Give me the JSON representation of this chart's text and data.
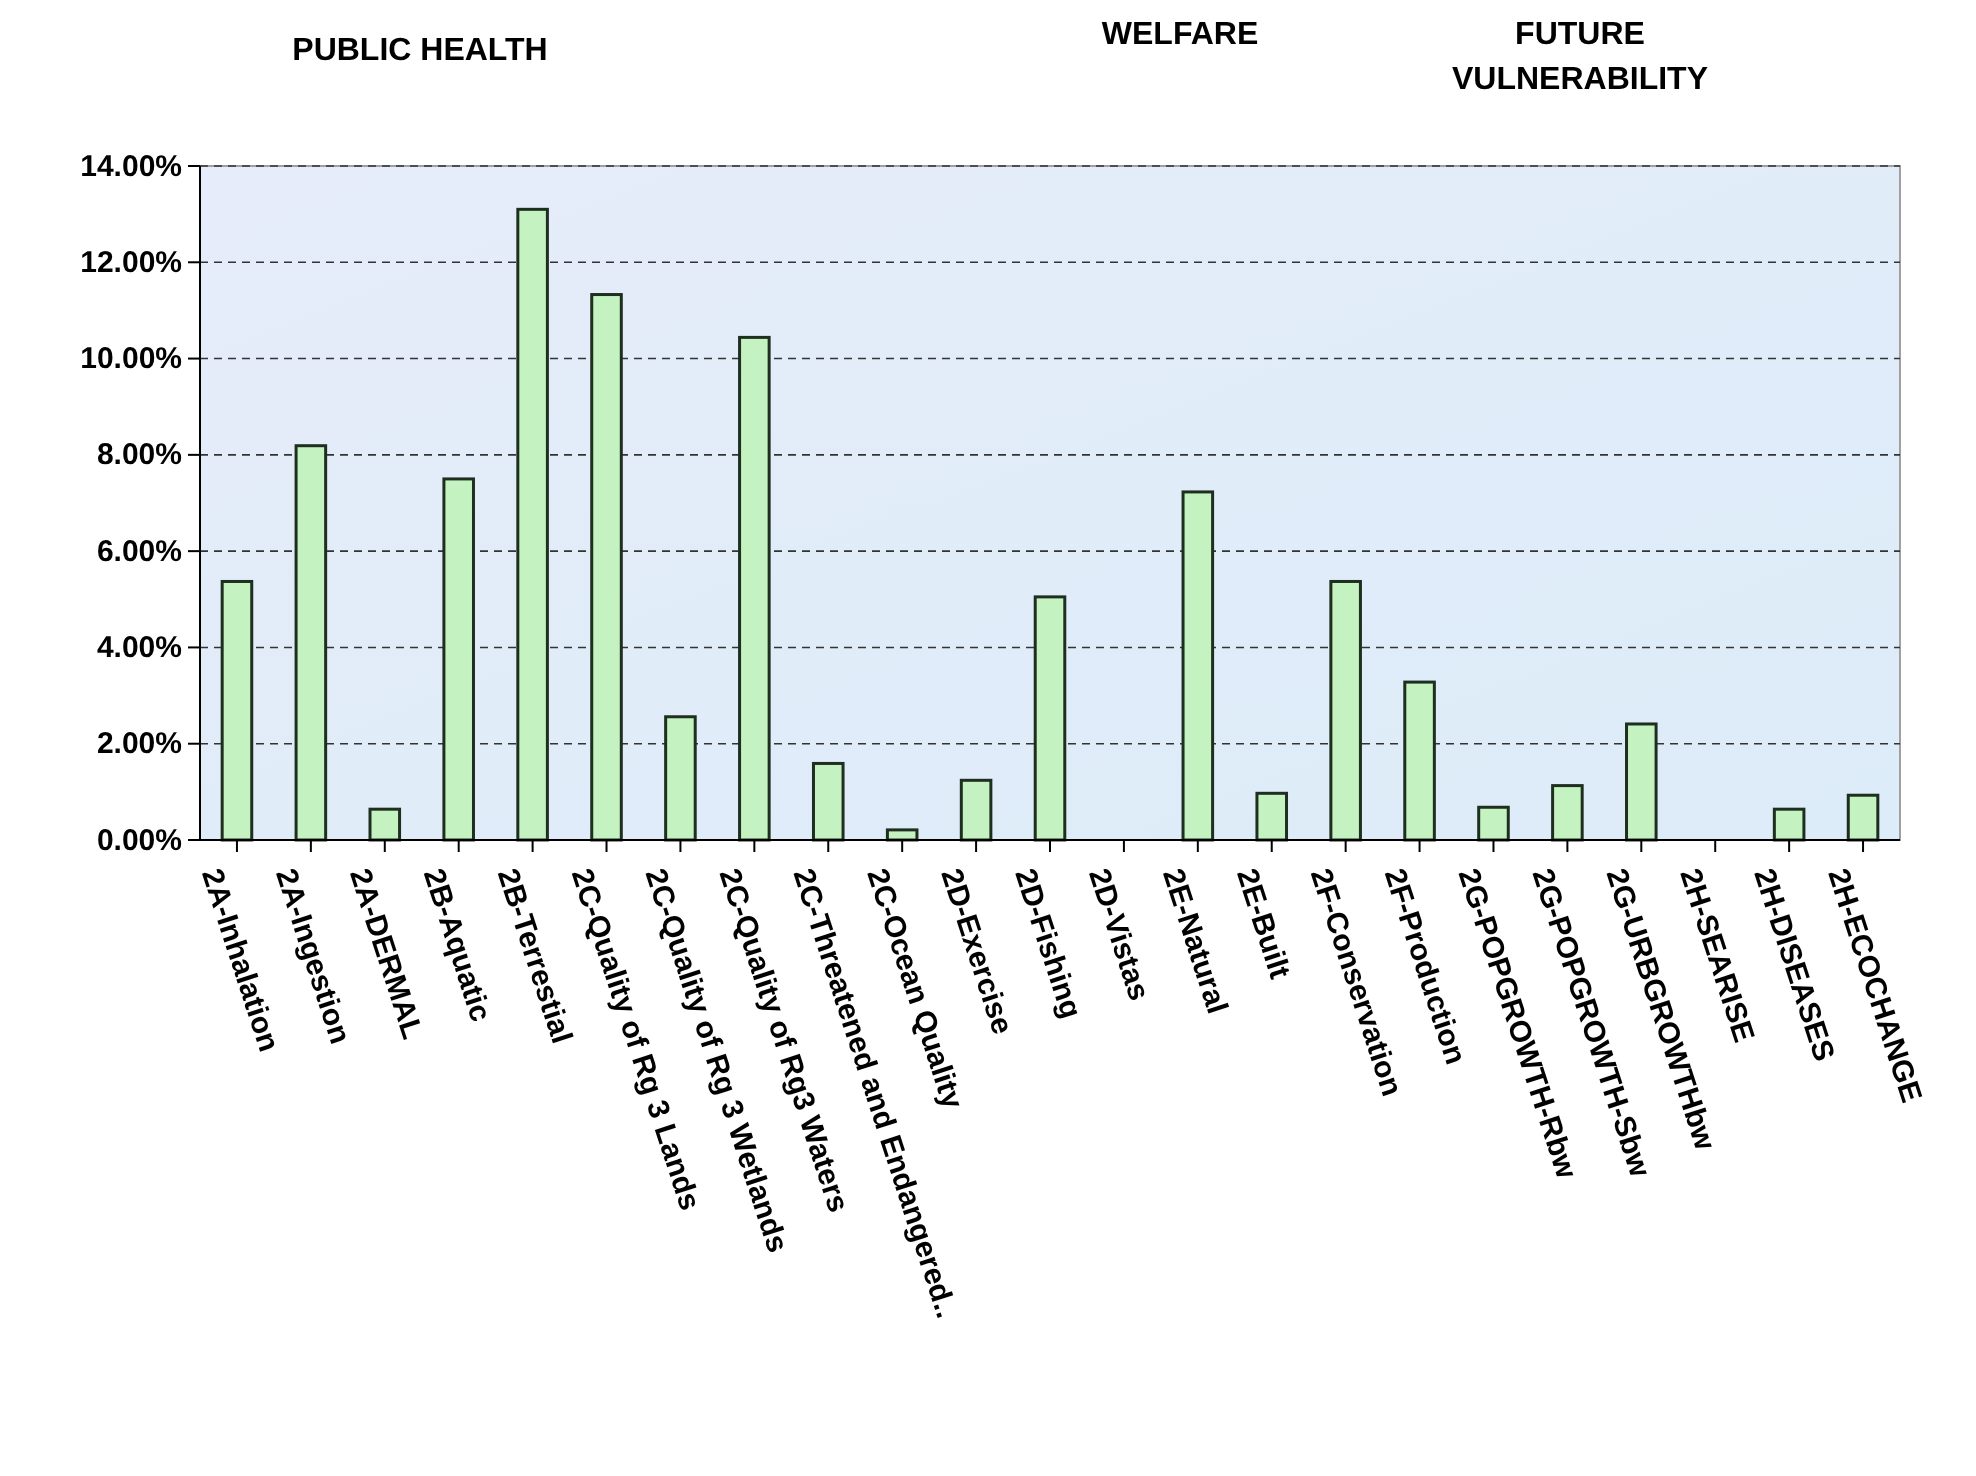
{
  "chart_data": {
    "type": "bar",
    "categories": [
      "2A-Inhalation",
      "2A-Ingestion",
      "2A-DERMAL",
      "2B-Aquatic",
      "2B-Terrestial",
      "2C-Quality of Rg 3 Lands",
      "2C-Quality of Rg 3 Wetlands",
      "2C-Quality of Rg3 Waters",
      "2C-Threatened and Endangered..",
      "2C-Ocean Quality",
      "2D-Exercise",
      "2D-Fishing",
      "2D-Vistas",
      "2E-Natural",
      "2E-Built",
      "2F-Conservation",
      "2F-Production",
      "2G-POPGROWTH-Rbw",
      "2G-POPGROWTH-Sbw",
      "2G-URBGROWTHbw",
      "2H-SEARISE",
      "2H-DISEASES",
      "2H-ECOCHANGE"
    ],
    "values": [
      5.37,
      8.19,
      0.64,
      7.5,
      13.1,
      11.33,
      2.56,
      10.44,
      1.59,
      0.21,
      1.24,
      5.05,
      0,
      7.23,
      0.97,
      5.37,
      3.28,
      0.68,
      1.13,
      2.41,
      0,
      0.64,
      0.93
    ],
    "color": "#c4f2c0",
    "ylim": [
      0,
      14
    ],
    "yticks": [
      {
        "value": 0,
        "label": "0.00%"
      },
      {
        "value": 2,
        "label": "2.00%"
      },
      {
        "value": 4,
        "label": "4.00%"
      },
      {
        "value": 6,
        "label": "6.00%"
      },
      {
        "value": 8,
        "label": "8.00%"
      },
      {
        "value": 10,
        "label": "10.00%"
      },
      {
        "value": 12,
        "label": "12.00%"
      },
      {
        "value": 14,
        "label": "14.00%"
      }
    ],
    "grid": "y",
    "annotations": [
      "PUBLIC HEALTH",
      "WELFARE",
      "FUTURE VULNERABILITY"
    ]
  }
}
